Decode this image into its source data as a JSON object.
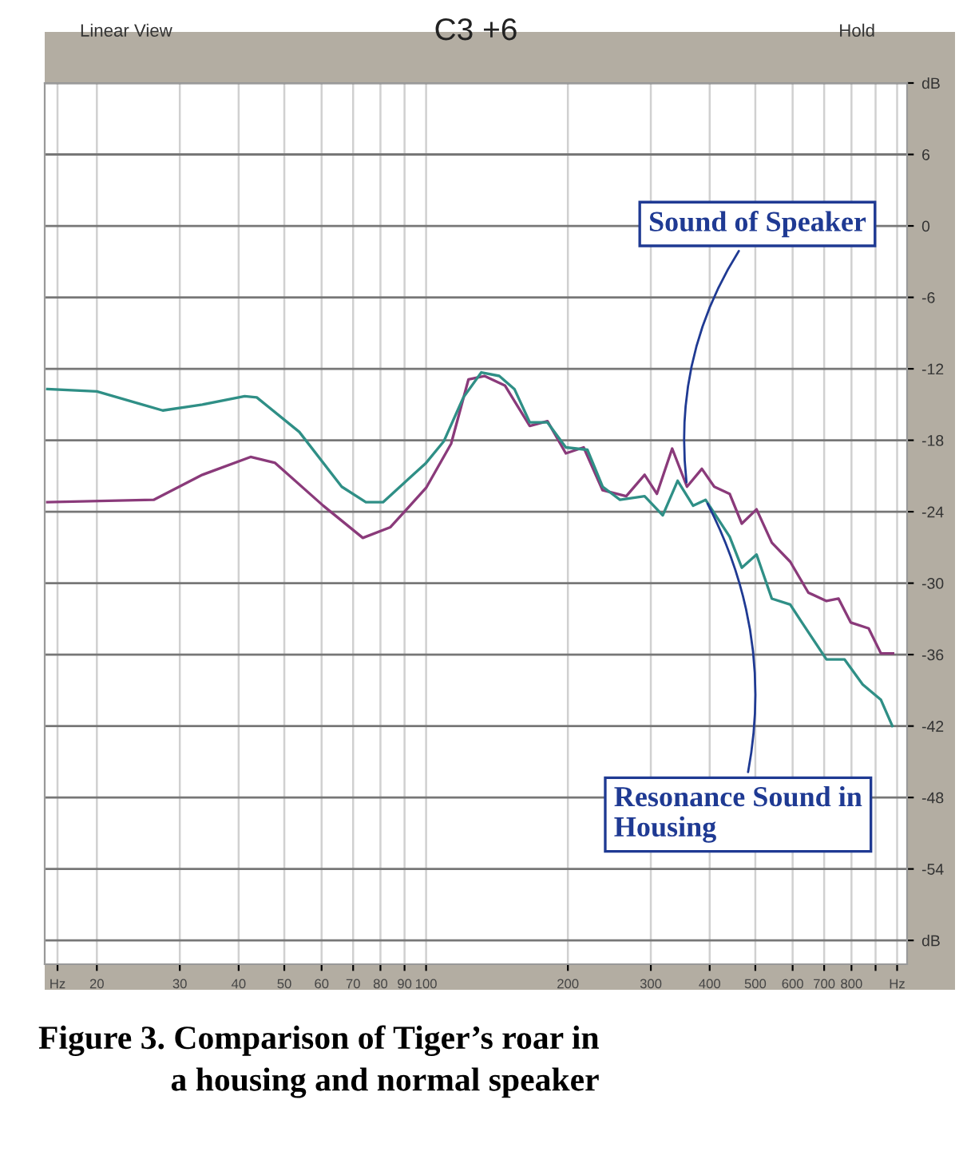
{
  "chart_data": {
    "type": "line",
    "title": "C3 +6",
    "annotations": [
      "Linear View",
      "Hold",
      "Figure 3. Comparison of Tiger’s roar in\na housing and normal speaker"
    ],
    "log": "x",
    "xlim": [
      15.5,
      1050
    ],
    "ylim": [
      -62,
      12
    ],
    "xticks": [
      {
        "value": 16.5,
        "label": "Hz"
      },
      20,
      30,
      40,
      50,
      60,
      70,
      80,
      90,
      100,
      200,
      300,
      400,
      500,
      600,
      700,
      800,
      {
        "value": 900,
        "label": null
      },
      {
        "value": 1000,
        "label": "Hz"
      }
    ],
    "yticks": [
      {
        "value": 12,
        "label": "dB"
      },
      6,
      0,
      -6,
      -12,
      -18,
      -24,
      -30,
      -36,
      -42,
      -48,
      -54,
      {
        "value": -60,
        "label": "dB"
      }
    ],
    "grid": true,
    "legend": false,
    "marker": "none",
    "line_style": "solid",
    "series": [
      {
        "name": "Sound of Speaker",
        "color": "#8a3a7a",
        "x": [
          15.7,
          26.4,
          33.5,
          42.4,
          47.8,
          60.5,
          73.4,
          84,
          100,
          113,
          123,
          133,
          147,
          166,
          181,
          198,
          216,
          237,
          266,
          291,
          309,
          333,
          358,
          385,
          409,
          441,
          468,
          503,
          542,
          593,
          648,
          708,
          751,
          797,
          870,
          924,
          980
        ],
        "values": [
          -23.2,
          -23.0,
          -20.9,
          -19.4,
          -19.9,
          -23.5,
          -26.2,
          -25.3,
          -22.0,
          -18.3,
          -12.9,
          -12.6,
          -13.4,
          -16.8,
          -16.4,
          -19.1,
          -18.6,
          -22.2,
          -22.7,
          -20.9,
          -22.5,
          -18.7,
          -21.9,
          -20.4,
          -21.9,
          -22.5,
          -25.0,
          -23.8,
          -26.6,
          -28.2,
          -30.8,
          -31.5,
          -31.3,
          -33.3,
          -33.8,
          -35.9,
          -35.9
        ]
      },
      {
        "name": "Resonance Sound in\nHousing",
        "color": "#2f8f86",
        "x": [
          15.7,
          20,
          27.6,
          33.5,
          41.2,
          43.7,
          53.8,
          66.2,
          74.5,
          81,
          100,
          109,
          120,
          131,
          143,
          154,
          166,
          181,
          198,
          220,
          237,
          258,
          291,
          318,
          342,
          369,
          392,
          441,
          468,
          503,
          542,
          593,
          628,
          708,
          773,
          845,
          924,
          977
        ],
        "values": [
          -13.7,
          -13.9,
          -15.5,
          -15.0,
          -14.3,
          -14.4,
          -17.3,
          -21.9,
          -23.2,
          -23.2,
          -19.9,
          -18.1,
          -14.4,
          -12.3,
          -12.6,
          -13.7,
          -16.5,
          -16.5,
          -18.6,
          -18.8,
          -21.9,
          -23.0,
          -22.7,
          -24.3,
          -21.4,
          -23.5,
          -23.0,
          -26.1,
          -28.7,
          -27.6,
          -31.3,
          -31.8,
          -33.3,
          -36.4,
          -36.4,
          -38.5,
          -39.8,
          -42.0
        ]
      }
    ]
  }
}
